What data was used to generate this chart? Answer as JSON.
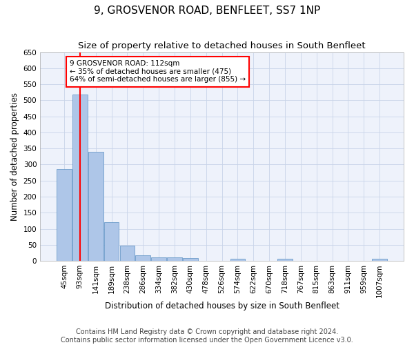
{
  "title": "9, GROSVENOR ROAD, BENFLEET, SS7 1NP",
  "subtitle": "Size of property relative to detached houses in South Benfleet",
  "xlabel": "Distribution of detached houses by size in South Benfleet",
  "ylabel": "Number of detached properties",
  "categories": [
    "45sqm",
    "93sqm",
    "141sqm",
    "189sqm",
    "238sqm",
    "286sqm",
    "334sqm",
    "382sqm",
    "430sqm",
    "478sqm",
    "526sqm",
    "574sqm",
    "622sqm",
    "670sqm",
    "718sqm",
    "767sqm",
    "815sqm",
    "863sqm",
    "911sqm",
    "959sqm",
    "1007sqm"
  ],
  "values": [
    285,
    517,
    340,
    120,
    48,
    17,
    11,
    10,
    8,
    0,
    0,
    7,
    0,
    0,
    7,
    0,
    0,
    0,
    0,
    0,
    7
  ],
  "bar_color": "#aec6e8",
  "bar_edge_color": "#5a8fc2",
  "vline_x_index": 1,
  "vline_color": "red",
  "annotation_text": "9 GROSVENOR ROAD: 112sqm\n← 35% of detached houses are smaller (475)\n64% of semi-detached houses are larger (855) →",
  "annotation_box_color": "red",
  "ylim": [
    0,
    650
  ],
  "yticks": [
    0,
    50,
    100,
    150,
    200,
    250,
    300,
    350,
    400,
    450,
    500,
    550,
    600,
    650
  ],
  "footer": "Contains HM Land Registry data © Crown copyright and database right 2024.\nContains public sector information licensed under the Open Government Licence v3.0.",
  "bg_color": "#eef2fb",
  "grid_color": "#c8d4e8",
  "title_fontsize": 11,
  "subtitle_fontsize": 9.5,
  "axis_label_fontsize": 8.5,
  "tick_fontsize": 7.5,
  "footer_fontsize": 7,
  "annotation_fontsize": 7.5
}
